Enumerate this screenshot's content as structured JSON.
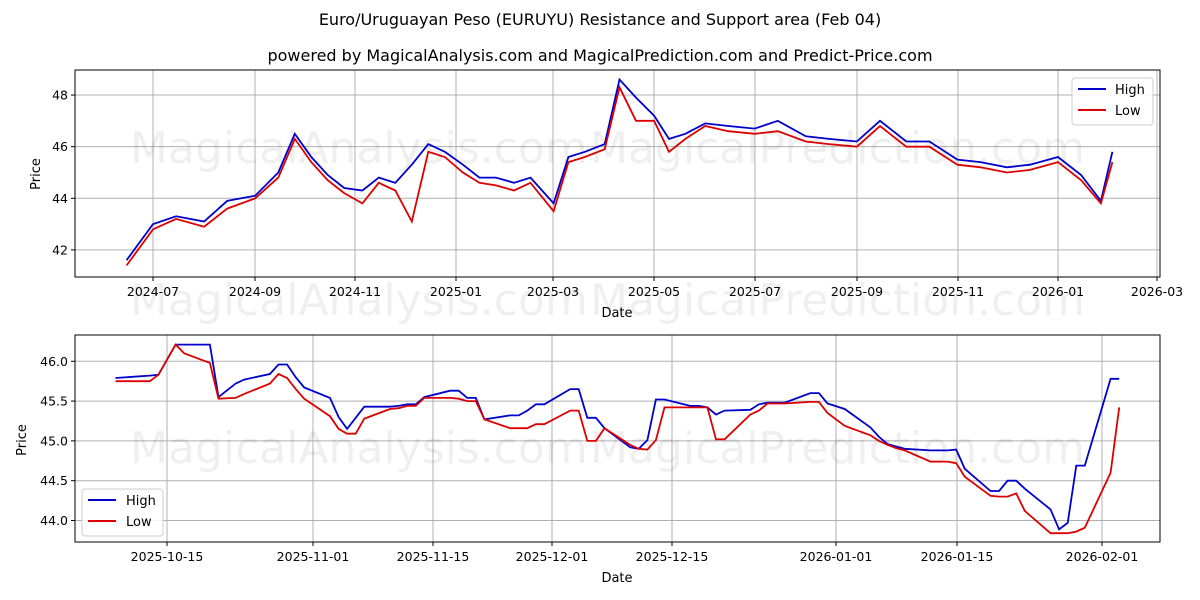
{
  "header": {
    "title": "Euro/Uruguayan Peso (EURUYU) Resistance and Support area (Feb 04)",
    "subtitle": "powered by MagicalAnalysis.com and MagicalPrediction.com and Predict-Price.com"
  },
  "watermarks": [
    "MagicalAnalysis.com",
    "MagicalPrediction.com"
  ],
  "colors": {
    "high": "#0000cc",
    "low": "#dd0000",
    "grid": "#b0b0b0"
  },
  "chart_data": [
    {
      "type": "line",
      "title": "",
      "xlabel": "Date",
      "ylabel": "Price",
      "ylim": [
        40.95,
        48.97
      ],
      "yticks": [
        42,
        44,
        46,
        48
      ],
      "ytick_labels": [
        "42",
        "44",
        "46",
        "48"
      ],
      "xtick_labels": [
        "2024-07",
        "2024-09",
        "2024-11",
        "2025-01",
        "2025-03",
        "2025-05",
        "2025-07",
        "2025-09",
        "2025-11",
        "2026-01",
        "2026-03"
      ],
      "grid": true,
      "legend_position": "upper right",
      "x": [
        "2024-06-15",
        "2024-07-01",
        "2024-07-15",
        "2024-08-01",
        "2024-08-15",
        "2024-09-01",
        "2024-09-15",
        "2024-09-25",
        "2024-10-05",
        "2024-10-15",
        "2024-10-25",
        "2024-11-05",
        "2024-11-15",
        "2024-11-25",
        "2024-12-05",
        "2024-12-15",
        "2024-12-25",
        "2025-01-05",
        "2025-01-15",
        "2025-01-25",
        "2025-02-05",
        "2025-02-15",
        "2025-03-01",
        "2025-03-10",
        "2025-03-20",
        "2025-04-01",
        "2025-04-10",
        "2025-04-20",
        "2025-05-01",
        "2025-05-10",
        "2025-05-20",
        "2025-06-01",
        "2025-06-15",
        "2025-07-01",
        "2025-07-15",
        "2025-08-01",
        "2025-08-15",
        "2025-09-01",
        "2025-09-15",
        "2025-10-01",
        "2025-10-15",
        "2025-11-01",
        "2025-11-15",
        "2025-12-01",
        "2025-12-15",
        "2026-01-01",
        "2026-01-15",
        "2026-01-27",
        "2026-02-03"
      ],
      "series": [
        {
          "name": "High",
          "values": [
            41.6,
            43.0,
            43.3,
            43.1,
            43.9,
            44.1,
            45.0,
            46.5,
            45.6,
            44.9,
            44.4,
            44.3,
            44.8,
            44.6,
            45.3,
            46.1,
            45.8,
            45.3,
            44.8,
            44.8,
            44.6,
            44.8,
            43.8,
            45.6,
            45.8,
            46.1,
            48.6,
            47.9,
            47.2,
            46.3,
            46.5,
            46.9,
            46.8,
            46.7,
            47.0,
            46.4,
            46.3,
            46.2,
            47.0,
            46.2,
            46.2,
            45.5,
            45.4,
            45.2,
            45.3,
            45.6,
            44.9,
            43.9,
            45.8
          ]
        },
        {
          "name": "Low",
          "values": [
            41.4,
            42.8,
            43.2,
            42.9,
            43.6,
            44.0,
            44.8,
            46.3,
            45.4,
            44.7,
            44.2,
            43.8,
            44.6,
            44.3,
            43.1,
            45.8,
            45.6,
            45.0,
            44.6,
            44.5,
            44.3,
            44.6,
            43.5,
            45.4,
            45.6,
            45.9,
            48.3,
            47.0,
            47.0,
            45.8,
            46.3,
            46.8,
            46.6,
            46.5,
            46.6,
            46.2,
            46.1,
            46.0,
            46.8,
            46.0,
            46.0,
            45.3,
            45.2,
            45.0,
            45.1,
            45.4,
            44.7,
            43.8,
            45.4
          ]
        }
      ]
    },
    {
      "type": "line",
      "title": "",
      "xlabel": "Date",
      "ylabel": "Price",
      "ylim": [
        43.73,
        46.33
      ],
      "yticks": [
        44.0,
        44.5,
        45.0,
        45.5,
        46.0
      ],
      "ytick_labels": [
        "44.0",
        "44.5",
        "45.0",
        "45.5",
        "46.0"
      ],
      "xtick_labels": [
        "2025-10-15",
        "2025-11-01",
        "2025-11-15",
        "2025-12-01",
        "2025-12-15",
        "2026-01-01",
        "2026-01-15",
        "2026-02-01"
      ],
      "grid": true,
      "legend_position": "lower left",
      "x": [
        "2025-10-09",
        "2025-10-13",
        "2025-10-14",
        "2025-10-16",
        "2025-10-17",
        "2025-10-20",
        "2025-10-21",
        "2025-10-23",
        "2025-10-24",
        "2025-10-27",
        "2025-10-28",
        "2025-10-29",
        "2025-10-30",
        "2025-10-31",
        "2025-11-03",
        "2025-11-04",
        "2025-11-05",
        "2025-11-06",
        "2025-11-07",
        "2025-11-10",
        "2025-11-11",
        "2025-11-12",
        "2025-11-13",
        "2025-11-14",
        "2025-11-17",
        "2025-11-18",
        "2025-11-19",
        "2025-11-20",
        "2025-11-21",
        "2025-11-24",
        "2025-11-25",
        "2025-11-26",
        "2025-11-27",
        "2025-11-28",
        "2025-12-01",
        "2025-12-02",
        "2025-12-03",
        "2025-12-04",
        "2025-12-05",
        "2025-12-08",
        "2025-12-09",
        "2025-12-10",
        "2025-12-11",
        "2025-12-12",
        "2025-12-15",
        "2025-12-16",
        "2025-12-17",
        "2025-12-18",
        "2025-12-19",
        "2025-12-22",
        "2025-12-23",
        "2025-12-24",
        "2025-12-26",
        "2025-12-29",
        "2025-12-30",
        "2025-12-31",
        "2026-01-02",
        "2026-01-05",
        "2026-01-06",
        "2026-01-07",
        "2026-01-08",
        "2026-01-09",
        "2026-01-12",
        "2026-01-13",
        "2026-01-14",
        "2026-01-15",
        "2026-01-16",
        "2026-01-19",
        "2026-01-20",
        "2026-01-21",
        "2026-01-22",
        "2026-01-23",
        "2026-01-26",
        "2026-01-27",
        "2026-01-28",
        "2026-01-29",
        "2026-01-30",
        "2026-02-02",
        "2026-02-03"
      ],
      "series": [
        {
          "name": "High",
          "values": [
            45.79,
            45.82,
            45.83,
            46.21,
            46.21,
            46.21,
            45.55,
            45.72,
            45.77,
            45.84,
            45.96,
            45.96,
            45.8,
            45.67,
            45.54,
            45.3,
            45.15,
            45.29,
            45.43,
            45.43,
            45.44,
            45.46,
            45.46,
            45.55,
            45.63,
            45.63,
            45.54,
            45.54,
            45.27,
            45.32,
            45.32,
            45.38,
            45.46,
            45.46,
            45.65,
            45.65,
            45.29,
            45.29,
            45.16,
            44.92,
            44.9,
            45.01,
            45.52,
            45.52,
            45.44,
            45.44,
            45.42,
            45.33,
            45.38,
            45.39,
            45.46,
            45.48,
            45.48,
            45.6,
            45.6,
            45.47,
            45.4,
            45.17,
            45.05,
            44.96,
            44.93,
            44.9,
            44.88,
            44.88,
            44.88,
            44.89,
            44.65,
            44.37,
            44.37,
            44.5,
            44.5,
            44.4,
            44.14,
            43.89,
            43.97,
            44.69,
            44.69,
            45.78,
            45.78
          ]
        },
        {
          "name": "Low",
          "values": [
            45.75,
            45.75,
            45.83,
            46.21,
            46.1,
            45.98,
            45.53,
            45.54,
            45.59,
            45.72,
            45.84,
            45.79,
            45.65,
            45.53,
            45.31,
            45.15,
            45.09,
            45.09,
            45.28,
            45.4,
            45.41,
            45.44,
            45.44,
            45.54,
            45.54,
            45.53,
            45.5,
            45.5,
            45.27,
            45.16,
            45.16,
            45.16,
            45.21,
            45.21,
            45.38,
            45.38,
            45.0,
            45.0,
            45.16,
            44.95,
            44.9,
            44.89,
            45.01,
            45.42,
            45.42,
            45.42,
            45.42,
            45.02,
            45.02,
            45.33,
            45.38,
            45.47,
            45.47,
            45.49,
            45.49,
            45.35,
            45.19,
            45.07,
            45.0,
            44.95,
            44.91,
            44.88,
            44.74,
            44.74,
            44.74,
            44.72,
            44.55,
            44.31,
            44.3,
            44.3,
            44.34,
            44.12,
            43.84,
            43.84,
            43.84,
            43.86,
            43.91,
            44.6,
            45.42
          ]
        }
      ]
    }
  ]
}
